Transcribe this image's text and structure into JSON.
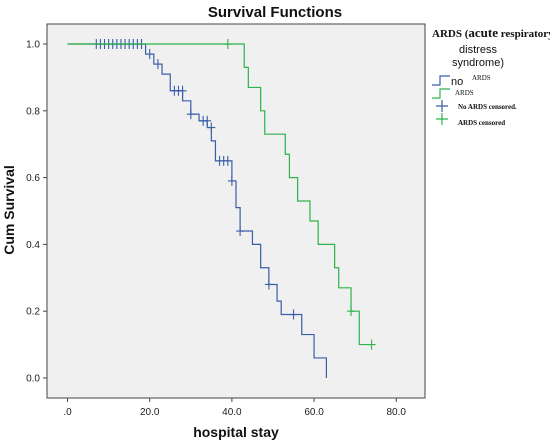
{
  "chart_data": {
    "type": "line",
    "title": "Survival Functions",
    "xlabel": "hospital stay",
    "ylabel": "Cum Survival",
    "xlim": [
      -5,
      87
    ],
    "ylim": [
      -0.06,
      1.06
    ],
    "x_ticks": [
      {
        "value": 0,
        "label": ".0"
      },
      {
        "value": 20,
        "label": "20.0"
      },
      {
        "value": 40,
        "label": "40.0"
      },
      {
        "value": 60,
        "label": "60.0"
      },
      {
        "value": 80,
        "label": "80.0"
      }
    ],
    "y_ticks": [
      {
        "value": 0,
        "label": "0.0"
      },
      {
        "value": 0.2,
        "label": "0.2"
      },
      {
        "value": 0.4,
        "label": "0.4"
      },
      {
        "value": 0.6,
        "label": "0.6"
      },
      {
        "value": 0.8,
        "label": "0.8"
      },
      {
        "value": 1.0,
        "label": "1.0"
      }
    ],
    "grid": false,
    "legend_title": {
      "lead": "ARDS (",
      "acute": "acute",
      "rest": " respiratory",
      "line2": "distress",
      "line3": "syndrome)"
    },
    "legend_items": {
      "no_prefix": "no",
      "no_suffix": "ARDS",
      "ards": "ARDS",
      "no_censored": "No ARDS censored.",
      "ards_censored": "ARDS censored"
    },
    "series": [
      {
        "key": "no_ards",
        "color": "#3a5ea8",
        "steps": [
          [
            0,
            1.0
          ],
          [
            19,
            0.97
          ],
          [
            21,
            0.94
          ],
          [
            23,
            0.91
          ],
          [
            25,
            0.86
          ],
          [
            28,
            0.83
          ],
          [
            30,
            0.79
          ],
          [
            32,
            0.77
          ],
          [
            34,
            0.75
          ],
          [
            35,
            0.71
          ],
          [
            36,
            0.65
          ],
          [
            40,
            0.59
          ],
          [
            41,
            0.51
          ],
          [
            42,
            0.44
          ],
          [
            45,
            0.4
          ],
          [
            47,
            0.33
          ],
          [
            49,
            0.28
          ],
          [
            51,
            0.23
          ],
          [
            52,
            0.19
          ],
          [
            57,
            0.13
          ],
          [
            60,
            0.06
          ],
          [
            63,
            0.0
          ]
        ],
        "end_x": 63,
        "censored": [
          {
            "x": 7,
            "y": 1.0
          },
          {
            "x": 8,
            "y": 1.0
          },
          {
            "x": 9,
            "y": 1.0
          },
          {
            "x": 10,
            "y": 1.0
          },
          {
            "x": 11,
            "y": 1.0
          },
          {
            "x": 12,
            "y": 1.0
          },
          {
            "x": 13,
            "y": 1.0
          },
          {
            "x": 14,
            "y": 1.0
          },
          {
            "x": 15,
            "y": 1.0
          },
          {
            "x": 16,
            "y": 1.0
          },
          {
            "x": 17,
            "y": 1.0
          },
          {
            "x": 18,
            "y": 1.0
          },
          {
            "x": 20,
            "y": 0.97
          },
          {
            "x": 22,
            "y": 0.94
          },
          {
            "x": 26,
            "y": 0.86
          },
          {
            "x": 27,
            "y": 0.86
          },
          {
            "x": 28,
            "y": 0.86
          },
          {
            "x": 30,
            "y": 0.79
          },
          {
            "x": 33,
            "y": 0.77
          },
          {
            "x": 34,
            "y": 0.77
          },
          {
            "x": 35,
            "y": 0.75
          },
          {
            "x": 37,
            "y": 0.65
          },
          {
            "x": 38,
            "y": 0.65
          },
          {
            "x": 39,
            "y": 0.65
          },
          {
            "x": 40,
            "y": 0.59
          },
          {
            "x": 42,
            "y": 0.44
          },
          {
            "x": 49,
            "y": 0.28
          },
          {
            "x": 55,
            "y": 0.19
          }
        ]
      },
      {
        "key": "ards",
        "color": "#2db34a",
        "steps": [
          [
            0,
            1.0
          ],
          [
            43,
            0.93
          ],
          [
            44,
            0.87
          ],
          [
            47,
            0.8
          ],
          [
            48,
            0.73
          ],
          [
            53,
            0.67
          ],
          [
            54,
            0.6
          ],
          [
            56,
            0.53
          ],
          [
            59,
            0.47
          ],
          [
            61,
            0.4
          ],
          [
            65,
            0.33
          ],
          [
            66,
            0.27
          ],
          [
            69,
            0.2
          ],
          [
            71,
            0.1
          ]
        ],
        "end_x": 74,
        "censored": [
          {
            "x": 39,
            "y": 1.0
          },
          {
            "x": 69,
            "y": 0.2
          },
          {
            "x": 74,
            "y": 0.1
          }
        ]
      }
    ]
  }
}
